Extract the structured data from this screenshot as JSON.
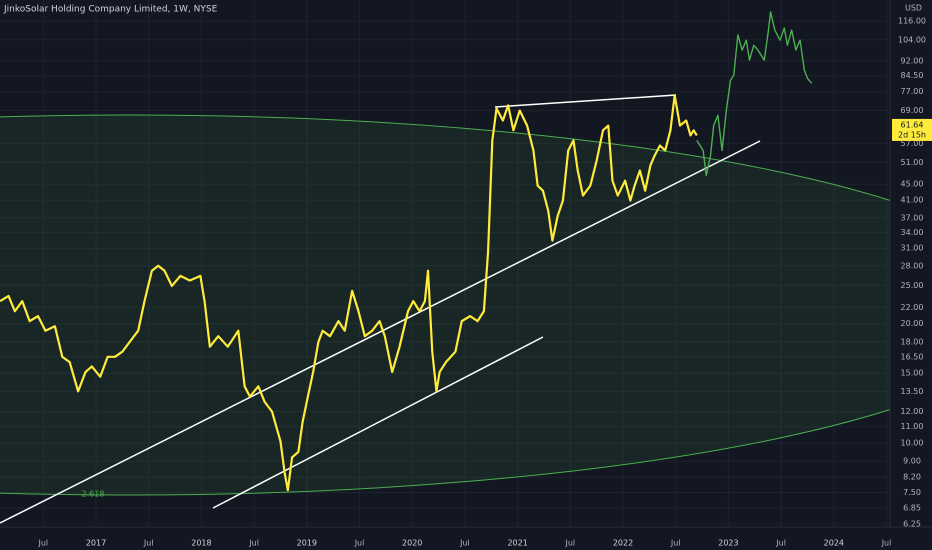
{
  "chart_data": {
    "type": "line",
    "title": "JinkoSolar Holding Company Limited, 1W, NYSE",
    "currency": "USD",
    "annotation": "2.618",
    "price_label": {
      "value": 61.64,
      "countdown": "2d 15h"
    },
    "log_scale": true,
    "grid": true,
    "xlim": [
      2016.089,
      2024.533
    ],
    "ylim": [
      6.14,
      131.1
    ],
    "xticks": [
      {
        "value": 2016.5,
        "label": "Jul"
      },
      2017,
      {
        "value": 2017.5,
        "label": "Jul"
      },
      2018,
      {
        "value": 2018.5,
        "label": "Jul"
      },
      2019,
      {
        "value": 2019.5,
        "label": "Jul"
      },
      2020,
      {
        "value": 2020.5,
        "label": "Jul"
      },
      2021,
      {
        "value": 2021.5,
        "label": "Jul"
      },
      2022,
      {
        "value": 2022.5,
        "label": "Jul"
      },
      2023,
      {
        "value": 2023.5,
        "label": "Jul"
      },
      2024,
      {
        "value": 2024.5,
        "label": "Jul"
      }
    ],
    "yticks": [
      {
        "value": 116,
        "label": "116.00"
      },
      {
        "value": 104,
        "label": "104.00"
      },
      {
        "value": 92,
        "label": "92.00"
      },
      {
        "value": 84.5,
        "label": "84.50"
      },
      {
        "value": 77,
        "label": "77.00"
      },
      {
        "value": 69,
        "label": "69.00"
      },
      {
        "value": 57,
        "label": "57.00"
      },
      {
        "value": 51,
        "label": "51.00"
      },
      {
        "value": 45,
        "label": "45.00"
      },
      {
        "value": 41,
        "label": "41.00"
      },
      {
        "value": 37,
        "label": "37.00"
      },
      {
        "value": 34,
        "label": "34.00"
      },
      {
        "value": 31,
        "label": "31.00"
      },
      {
        "value": 28,
        "label": "28.00"
      },
      {
        "value": 25,
        "label": "25.00"
      },
      {
        "value": 22,
        "label": "22.00"
      },
      {
        "value": 20,
        "label": "20.00"
      },
      {
        "value": 18,
        "label": "18.00"
      },
      {
        "value": 16.5,
        "label": "16.50"
      },
      {
        "value": 15,
        "label": "15.00"
      },
      {
        "value": 13.5,
        "label": "13.50"
      },
      {
        "value": 12,
        "label": "12.00"
      },
      {
        "value": 11,
        "label": "11.00"
      },
      {
        "value": 10,
        "label": "10.00"
      },
      {
        "value": 9,
        "label": "9.00"
      },
      {
        "value": 8.2,
        "label": "8.20"
      },
      {
        "value": 7.5,
        "label": "7.50"
      },
      {
        "value": 6.85,
        "label": "6.85"
      },
      {
        "value": 6.25,
        "label": "6.25"
      }
    ],
    "series": [
      {
        "color": "#ffeb3b",
        "x": [
          2016.09,
          2016.17,
          2016.23,
          2016.3,
          2016.37,
          2016.45,
          2016.52,
          2016.61,
          2016.68,
          2016.75,
          2016.83,
          2016.9,
          2016.96,
          2017.04,
          2017.11,
          2017.18,
          2017.25,
          2017.32,
          2017.4,
          2017.46,
          2017.53,
          2017.59,
          2017.65,
          2017.72,
          2017.8,
          2017.89,
          2017.99,
          2018.03,
          2018.08,
          2018.16,
          2018.25,
          2018.35,
          2018.41,
          2018.46,
          2018.54,
          2018.6,
          2018.67,
          2018.75,
          2018.79,
          2018.82,
          2018.86,
          2018.92,
          2018.96,
          2019.01,
          2019.06,
          2019.11,
          2019.15,
          2019.22,
          2019.3,
          2019.36,
          2019.43,
          2019.49,
          2019.55,
          2019.62,
          2019.69,
          2019.74,
          2019.81,
          2019.88,
          2019.96,
          2020.01,
          2020.07,
          2020.12,
          2020.15,
          2020.19,
          2020.23,
          2020.26,
          2020.32,
          2020.41,
          2020.47,
          2020.55,
          2020.62,
          2020.68,
          2020.72,
          2020.76,
          2020.8,
          2020.86,
          2020.91,
          2020.96,
          2021.02,
          2021.09,
          2021.15,
          2021.19,
          2021.24,
          2021.29,
          2021.33,
          2021.38,
          2021.43,
          2021.48,
          2021.53,
          2021.57,
          2021.62,
          2021.69,
          2021.75,
          2021.81,
          2021.86,
          2021.9,
          2021.95,
          2022.02,
          2022.07,
          2022.11,
          2022.16,
          2022.21,
          2022.26,
          2022.3,
          2022.35,
          2022.4,
          2022.45,
          2022.49,
          2022.54,
          2022.6,
          2022.64,
          2022.67,
          2022.7
        ],
        "values": [
          22.8,
          23.5,
          21.5,
          22.8,
          20.3,
          20.9,
          19.2,
          19.7,
          16.5,
          16.0,
          13.5,
          15.1,
          15.6,
          14.7,
          16.5,
          16.5,
          17.0,
          18.0,
          19.2,
          22.8,
          27.2,
          28.0,
          27.2,
          24.9,
          26.4,
          25.7,
          26.4,
          22.8,
          17.5,
          18.6,
          17.5,
          19.2,
          13.9,
          13.1,
          13.9,
          12.7,
          12.0,
          10.1,
          8.4,
          7.6,
          9.2,
          9.5,
          11.3,
          13.1,
          15.1,
          18.0,
          19.2,
          18.6,
          20.3,
          19.2,
          24.2,
          21.5,
          18.6,
          19.2,
          20.3,
          18.6,
          15.1,
          17.5,
          21.5,
          22.8,
          21.5,
          22.8,
          27.2,
          17.0,
          13.5,
          15.1,
          16.0,
          17.0,
          20.3,
          20.9,
          20.3,
          21.5,
          30.5,
          58.0,
          69.8,
          65.1,
          71.1,
          61.5,
          69.0,
          63.2,
          54.7,
          44.6,
          43.3,
          38.6,
          32.4,
          37.4,
          40.9,
          54.7,
          58.0,
          48.7,
          42.1,
          44.6,
          51.6,
          61.5,
          63.2,
          45.9,
          42.1,
          45.9,
          40.9,
          44.6,
          48.7,
          43.3,
          50.2,
          53.1,
          56.3,
          54.7,
          61.5,
          75.4,
          63.2,
          65.1,
          59.7,
          61.5,
          59.7
        ]
      },
      {
        "color": "#4caf50",
        "x": [
          2022.7,
          2022.76,
          2022.79,
          2022.83,
          2022.86,
          2022.9,
          2022.94,
          2022.98,
          2023.02,
          2023.05,
          2023.09,
          2023.13,
          2023.17,
          2023.2,
          2023.24,
          2023.28,
          2023.34,
          2023.38,
          2023.4,
          2023.44,
          2023.49,
          2023.53,
          2023.56,
          2023.6,
          2023.64,
          2023.68,
          2023.72,
          2023.75,
          2023.79
        ],
        "values": [
          58.0,
          54.7,
          47.3,
          53.1,
          63.2,
          67.1,
          54.7,
          69.0,
          82.2,
          84.6,
          107,
          98,
          103.8,
          92.4,
          100.8,
          98,
          92.4,
          110.1,
          122.3,
          110.1,
          103.8,
          111.4,
          100.8,
          110.1,
          98,
          103.8,
          87.2,
          83.2,
          80.8
        ]
      }
    ]
  }
}
